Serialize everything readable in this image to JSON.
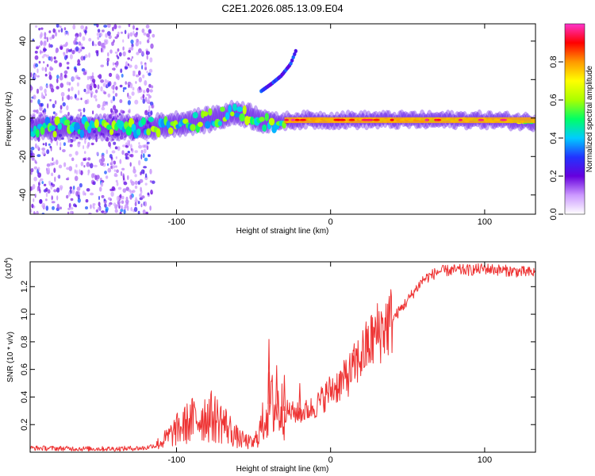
{
  "title": "C2E1.2026.085.13.09.E04",
  "chart_data": [
    {
      "type": "heatmap",
      "xlabel": "Height of straight line (km)",
      "ylabel": "Frequency (Hz)",
      "xlim": [
        -195,
        133
      ],
      "ylim": [
        -50,
        49
      ],
      "xticks": [
        -100,
        0,
        100
      ],
      "xtick_labels": [
        "-100",
        "0",
        "100"
      ],
      "yticks": [
        -40,
        -20,
        0,
        20,
        40
      ],
      "ytick_labels": [
        "-40",
        "-20",
        "0",
        "20",
        "40"
      ],
      "colorbar": {
        "label": "Normalized spectral amplitude",
        "range": [
          0,
          1
        ],
        "ticks": [
          0.0,
          0.2,
          0.4,
          0.6,
          0.8
        ],
        "tick_labels": [
          "0.0",
          "0.2",
          "0.4",
          "0.6",
          "0.8"
        ],
        "colors": [
          "#ffffff",
          "#cc99ff",
          "#6600dd",
          "#2233ff",
          "#00ccff",
          "#00ff66",
          "#aaff00",
          "#ffff00",
          "#ff9900",
          "#ff0000",
          "#ff33cc"
        ]
      },
      "features": [
        {
          "name": "main-band",
          "x": [
            -195,
            -120,
            -80,
            -60,
            -40,
            -20,
            0,
            50,
            100,
            133
          ],
          "y": [
            -5,
            -5,
            -1,
            3,
            -2,
            -1,
            -1,
            -1,
            -1,
            -2
          ],
          "peak_amplitude": 0.95
        },
        {
          "name": "rising-harmonic",
          "x": [
            -45,
            -38,
            -32,
            -26,
            -22
          ],
          "y": [
            14,
            18,
            22,
            28,
            36
          ],
          "peak_amplitude": 0.35
        },
        {
          "name": "noise-scatter",
          "x_range": [
            -195,
            -115
          ],
          "y_range": [
            -50,
            49
          ],
          "peak_amplitude": 0.3
        }
      ]
    },
    {
      "type": "line",
      "xlabel": "Height of straight line (km)",
      "ylabel": "SNR (10 * v/v)",
      "exponent_label": "(x10",
      "exponent_sup": "4",
      "exponent_close": ")",
      "xlim": [
        -195,
        133
      ],
      "ylim": [
        0,
        13800
      ],
      "xticks": [
        -100,
        0,
        100
      ],
      "xtick_labels": [
        "-100",
        "0",
        "100"
      ],
      "yticks": [
        2000,
        4000,
        6000,
        8000,
        10000,
        12000
      ],
      "ytick_labels": [
        "0.2",
        "0.4",
        "0.6",
        "0.8",
        "1.0",
        "1.2"
      ],
      "color": "#ee3333",
      "series": [
        {
          "name": "SNR",
          "x": [
            -195,
            -180,
            -160,
            -140,
            -120,
            -110,
            -100,
            -90,
            -80,
            -70,
            -60,
            -50,
            -45,
            -40,
            -35,
            -30,
            -20,
            -10,
            0,
            10,
            20,
            30,
            40,
            50,
            60,
            70,
            80,
            90,
            100,
            110,
            120,
            133
          ],
          "y": [
            300,
            280,
            250,
            250,
            300,
            700,
            1600,
            2300,
            2700,
            2200,
            1000,
            600,
            1800,
            3500,
            3200,
            3000,
            2800,
            3300,
            4500,
            5300,
            7000,
            8600,
            9600,
            11000,
            12500,
            13100,
            13200,
            13200,
            13300,
            13200,
            13100,
            13000
          ]
        }
      ],
      "spikes": [
        {
          "x": -40,
          "y": 8200
        },
        {
          "x": -35,
          "y": 6300
        },
        {
          "x": -30,
          "y": 5600
        },
        {
          "x": -20,
          "y": 5000
        },
        {
          "x": 10,
          "y": 6700
        },
        {
          "x": 15,
          "y": 7000
        }
      ]
    }
  ]
}
